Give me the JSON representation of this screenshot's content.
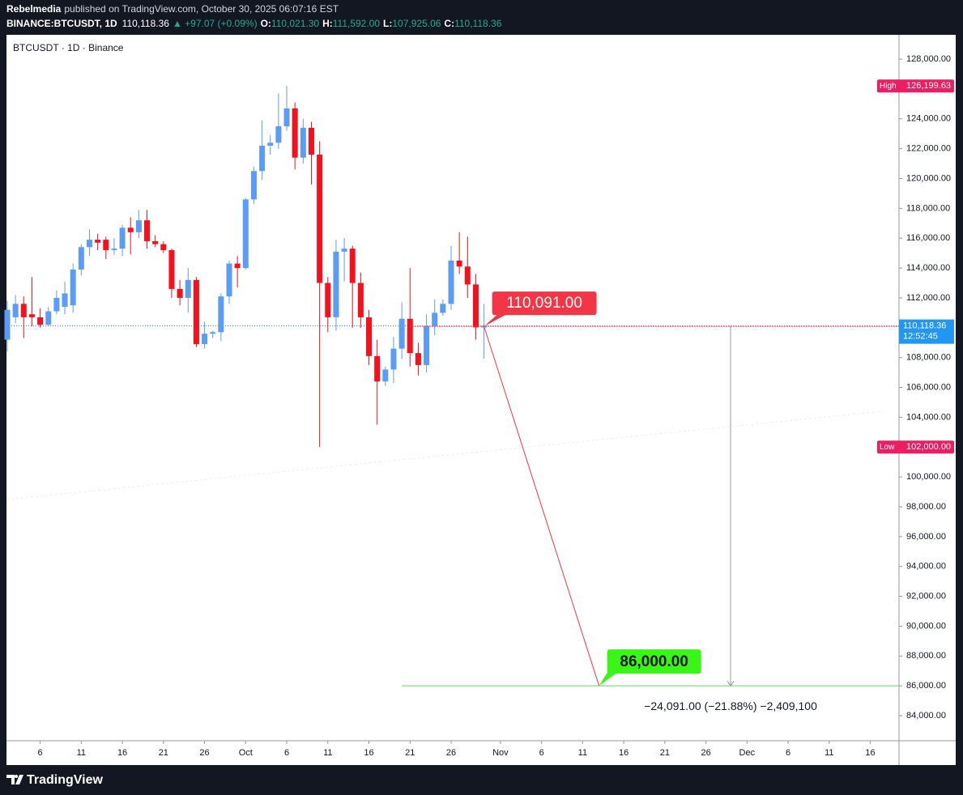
{
  "header": {
    "author": "Rebelmedia",
    "published": "published on TradingView.com, October 30, 2025 06:07:16 EST",
    "symbol": "BINANCE:BTCUSDT, 1D",
    "last": "110,118.36",
    "change": "▲ +97.07 (+0.09%)",
    "ohlc": [
      {
        "label": "O:",
        "value": "110,021.30"
      },
      {
        "label": "H:",
        "value": "111,592.00"
      },
      {
        "label": "L:",
        "value": "107,925.06"
      },
      {
        "label": "C:",
        "value": "110,118.36"
      }
    ]
  },
  "legend": "BTCUSDT · 1D · Binance",
  "footer": "TradingView",
  "chart_data": {
    "type": "candlestick",
    "up_color": "#5b9cf6",
    "down_color": "#f7101c",
    "x": [
      "2025-09-02",
      "2025-09-03",
      "2025-09-04",
      "2025-09-05",
      "2025-09-06",
      "2025-09-07",
      "2025-09-08",
      "2025-09-09",
      "2025-09-10",
      "2025-09-11",
      "2025-09-12",
      "2025-09-13",
      "2025-09-14",
      "2025-09-15",
      "2025-09-16",
      "2025-09-17",
      "2025-09-18",
      "2025-09-19",
      "2025-09-20",
      "2025-09-21",
      "2025-09-22",
      "2025-09-23",
      "2025-09-24",
      "2025-09-25",
      "2025-09-26",
      "2025-09-27",
      "2025-09-28",
      "2025-09-29",
      "2025-09-30",
      "2025-10-01",
      "2025-10-02",
      "2025-10-03",
      "2025-10-04",
      "2025-10-05",
      "2025-10-06",
      "2025-10-07",
      "2025-10-08",
      "2025-10-09",
      "2025-10-10",
      "2025-10-11",
      "2025-10-12",
      "2025-10-13",
      "2025-10-14",
      "2025-10-15",
      "2025-10-16",
      "2025-10-17",
      "2025-10-18",
      "2025-10-19",
      "2025-10-20",
      "2025-10-21",
      "2025-10-22",
      "2025-10-23",
      "2025-10-24",
      "2025-10-25",
      "2025-10-26",
      "2025-10-27",
      "2025-10-28",
      "2025-10-29",
      "2025-10-30"
    ],
    "open": [
      109200,
      110700,
      111600,
      110900,
      110700,
      110200,
      111100,
      111400,
      111500,
      113900,
      115400,
      115900,
      115900,
      115200,
      115300,
      116700,
      116400,
      117200,
      115800,
      115600,
      115200,
      112600,
      112000,
      113200,
      108900,
      109600,
      109700,
      112100,
      114300,
      114000,
      118600,
      120500,
      122200,
      122400,
      123500,
      124700,
      121400,
      123400,
      121600,
      113000,
      110700,
      115100,
      115300,
      113000,
      110700,
      108100,
      106400,
      107200,
      108600,
      110600,
      108300,
      107500,
      110100,
      111000,
      111600,
      114500,
      114100,
      112900,
      110021.3
    ],
    "high": [
      111800,
      112200,
      112100,
      113400,
      111300,
      111400,
      112500,
      113100,
      114300,
      115600,
      116600,
      116300,
      116100,
      116000,
      116900,
      117400,
      117900,
      117900,
      116200,
      115800,
      115300,
      113200,
      114000,
      113400,
      110400,
      109800,
      112300,
      114500,
      114800,
      118700,
      120800,
      123900,
      122900,
      125700,
      126199.63,
      125100,
      124000,
      123800,
      122500,
      113400,
      115900,
      116000,
      115500,
      113700,
      111200,
      109200,
      107400,
      109400,
      111700,
      114000,
      109000,
      110900,
      111900,
      111900,
      115500,
      116400,
      116100,
      113600,
      111592.0
    ],
    "low": [
      108400,
      110300,
      109300,
      110100,
      110000,
      110100,
      110900,
      110900,
      111000,
      113500,
      114800,
      115200,
      114600,
      114900,
      114800,
      114900,
      116000,
      115300,
      115400,
      115000,
      112000,
      111500,
      111000,
      108700,
      108600,
      109300,
      109100,
      111600,
      112700,
      113900,
      118300,
      119900,
      121600,
      122000,
      123200,
      120600,
      121000,
      119600,
      102000,
      109700,
      109800,
      113100,
      110000,
      110000,
      107500,
      103500,
      106100,
      106300,
      107900,
      107400,
      106800,
      107000,
      109500,
      110800,
      111200,
      113600,
      112000,
      109200,
      107925.06
    ],
    "close": [
      111200,
      111600,
      110700,
      110700,
      110200,
      111100,
      112000,
      112300,
      113900,
      115400,
      115900,
      115700,
      115200,
      115300,
      116700,
      116400,
      117200,
      115800,
      115600,
      115200,
      112600,
      112000,
      113200,
      108900,
      109600,
      109700,
      112100,
      114300,
      114000,
      118600,
      120500,
      122200,
      122400,
      123500,
      124700,
      121400,
      123400,
      121600,
      113000,
      110700,
      115100,
      115300,
      113000,
      110700,
      108100,
      106400,
      107200,
      108600,
      110600,
      108300,
      107500,
      110100,
      111000,
      111600,
      114500,
      114100,
      112900,
      110021,
      110118.36
    ],
    "xlim": [
      "2025-09-02",
      "2025-12-19"
    ],
    "xticks": [
      {
        "value": "2025-09-06",
        "label": "6"
      },
      {
        "value": "2025-09-11",
        "label": "11"
      },
      {
        "value": "2025-09-16",
        "label": "16"
      },
      {
        "value": "2025-09-21",
        "label": "21"
      },
      {
        "value": "2025-09-26",
        "label": "26"
      },
      {
        "value": "2025-10-01",
        "label": "Oct"
      },
      {
        "value": "2025-10-06",
        "label": "6"
      },
      {
        "value": "2025-10-11",
        "label": "11"
      },
      {
        "value": "2025-10-16",
        "label": "16"
      },
      {
        "value": "2025-10-21",
        "label": "21"
      },
      {
        "value": "2025-10-26",
        "label": "26"
      },
      {
        "value": "2025-11-01",
        "label": "Nov"
      },
      {
        "value": "2025-11-06",
        "label": "6"
      },
      {
        "value": "2025-11-11",
        "label": "11"
      },
      {
        "value": "2025-11-16",
        "label": "16"
      },
      {
        "value": "2025-11-21",
        "label": "21"
      },
      {
        "value": "2025-11-26",
        "label": "26"
      },
      {
        "value": "2025-12-01",
        "label": "Dec"
      },
      {
        "value": "2025-12-06",
        "label": "6"
      },
      {
        "value": "2025-12-11",
        "label": "11"
      },
      {
        "value": "2025-12-16",
        "label": "16"
      }
    ],
    "ylim": [
      82320,
      129630
    ],
    "yticks": [
      {
        "value": 84000,
        "label": "84,000.00"
      },
      {
        "value": 86000,
        "label": "86,000.00"
      },
      {
        "value": 88000,
        "label": "88,000.00"
      },
      {
        "value": 90000,
        "label": "90,000.00"
      },
      {
        "value": 92000,
        "label": "92,000.00"
      },
      {
        "value": 94000,
        "label": "94,000.00"
      },
      {
        "value": 96000,
        "label": "96,000.00"
      },
      {
        "value": 98000,
        "label": "98,000.00"
      },
      {
        "value": 100000,
        "label": "100,000.00"
      },
      {
        "value": 102000,
        "label": "102,000.00"
      },
      {
        "value": 104000,
        "label": "104,000.00"
      },
      {
        "value": 106000,
        "label": "106,000.00"
      },
      {
        "value": 108000,
        "label": "108,000.00"
      },
      {
        "value": 110000,
        "label": "110,000.00"
      },
      {
        "value": 112000,
        "label": "112,000.00"
      },
      {
        "value": 114000,
        "label": "114,000.00"
      },
      {
        "value": 116000,
        "label": "116,000.00"
      },
      {
        "value": 118000,
        "label": "118,000.00"
      },
      {
        "value": 120000,
        "label": "120,000.00"
      },
      {
        "value": 122000,
        "label": "122,000.00"
      },
      {
        "value": 124000,
        "label": "124,000.00"
      },
      {
        "value": 126000,
        "label": "126,000.00"
      },
      {
        "value": 128000,
        "label": "128,000.00"
      }
    ],
    "last_price_label": "110,118.36",
    "countdown": "12:52:45",
    "high_marker": {
      "label": "High",
      "value": 126199.63,
      "value_label": "126,199.63"
    },
    "low_marker": {
      "label": "Low",
      "value": 102000,
      "value_label": "102,000.00"
    },
    "projection": {
      "from": 110091,
      "from_label": "110,091.00",
      "to": 86000,
      "to_label": "86,000.00",
      "change_label": "−24,091.00 (−21.88%) −2,409,100"
    }
  }
}
